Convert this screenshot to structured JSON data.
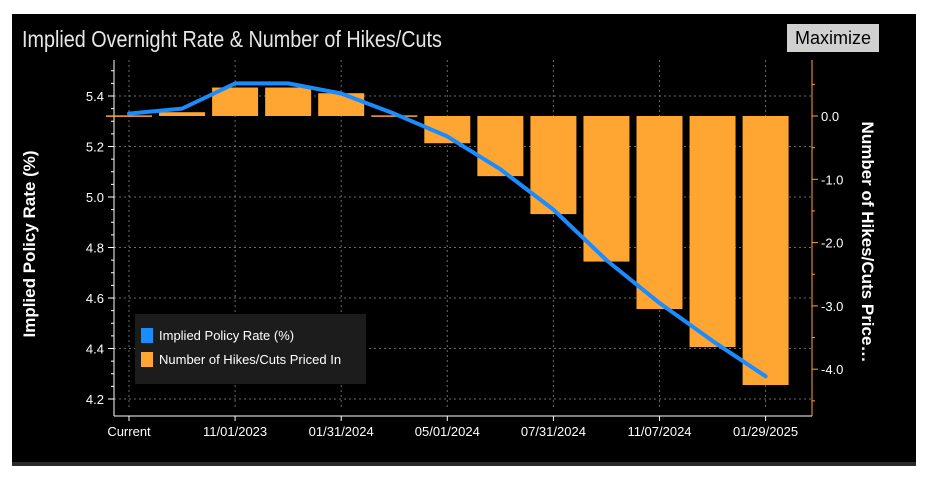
{
  "title": "Implied Overnight Rate & Number of Hikes/Cuts",
  "maximize_label": "Maximize",
  "colors": {
    "background": "#000000",
    "line": "#1a8cff",
    "bars": "#ffa531",
    "text": "#ffffff"
  },
  "chart_data": {
    "type": "bar+line",
    "title": "Implied Overnight Rate & Number of Hikes/Cuts",
    "x_tick_labels": [
      "Current",
      "11/01/2023",
      "01/31/2024",
      "05/01/2024",
      "07/31/2024",
      "11/07/2024",
      "01/29/2025"
    ],
    "y_left": {
      "label": "Implied Policy Rate (%)",
      "range": [
        4.2,
        5.5
      ],
      "ticks": [
        "4.2",
        "4.4",
        "4.6",
        "4.8",
        "5.0",
        "5.2",
        "5.4"
      ]
    },
    "y_right": {
      "label": "Number of Hikes/Cuts Price…",
      "range": [
        -4.6,
        1.0
      ],
      "ticks": [
        "0.0",
        "-1.0",
        "-2.0",
        "-3.0",
        "-4.0"
      ]
    },
    "series": [
      {
        "name": "Implied Policy Rate (%)",
        "type": "line",
        "axis": "left",
        "color": "#1a8cff",
        "values": [
          5.33,
          5.35,
          5.45,
          5.45,
          5.41,
          5.33,
          5.24,
          5.11,
          4.95,
          4.75,
          4.58,
          4.43,
          4.29
        ]
      },
      {
        "name": "Number of Hikes/Cuts Priced In",
        "type": "bar",
        "axis": "right",
        "color": "#ffa531",
        "values": [
          0.01,
          0.06,
          0.45,
          0.45,
          0.36,
          0.01,
          -0.43,
          -0.95,
          -1.55,
          -2.3,
          -3.05,
          -3.65,
          -4.25
        ]
      }
    ],
    "legend": [
      "Implied Policy Rate (%)",
      "Number of Hikes/Cuts Priced In"
    ],
    "grid": true,
    "legend_position": "bottom-left"
  }
}
